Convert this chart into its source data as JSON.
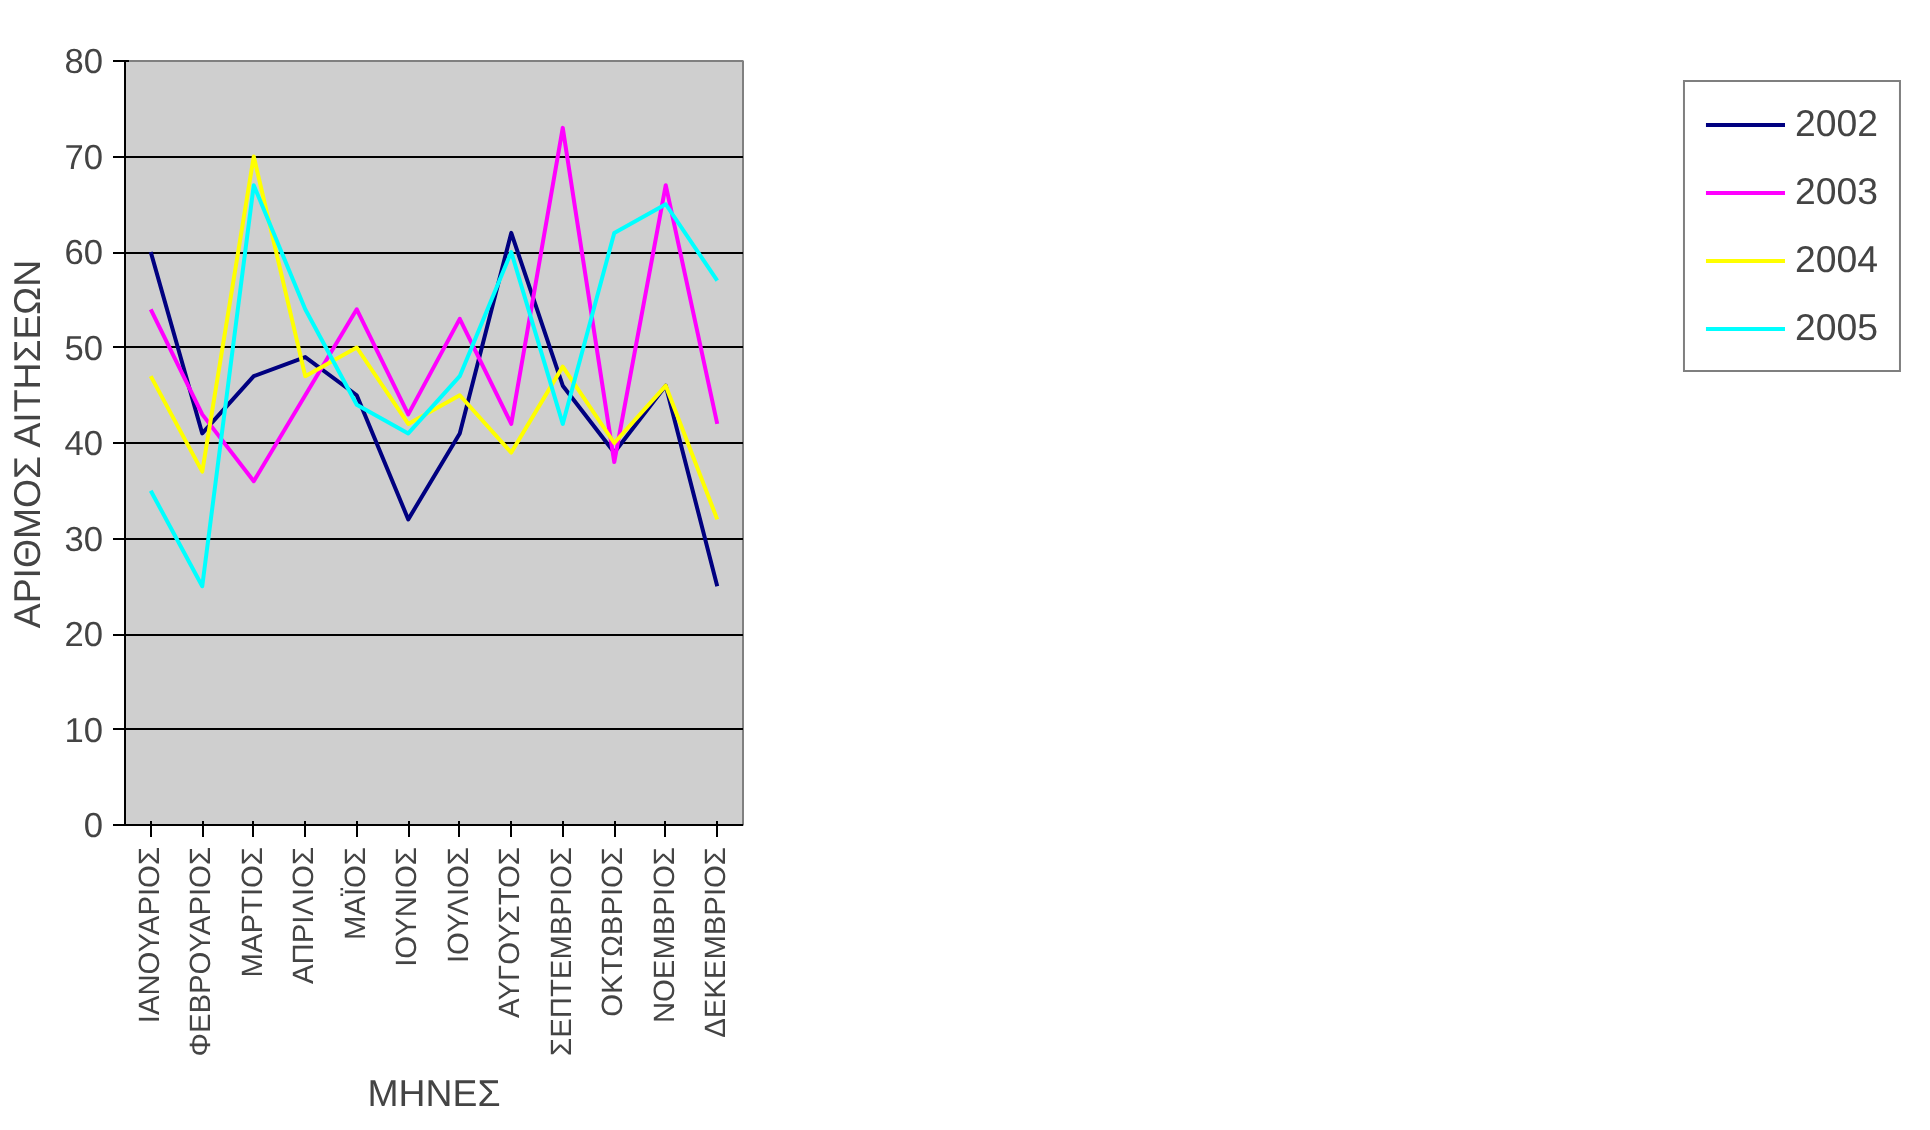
{
  "chart_data": {
    "type": "line",
    "xlabel": "ΜΗΝΕΣ",
    "ylabel": "ΑΡΙΘΜΟΣ ΑΙΤΗΣΕΩΝ",
    "categories": [
      "ΙΑΝΟΥΑΡΙΟΣ",
      "ΦΕΒΡΟΥΑΡΙΟΣ",
      "ΜΑΡΤΙΟΣ",
      "ΑΠΡΙΛΙΟΣ",
      "ΜΑΪΟΣ",
      "ΙΟΥΝΙΟΣ",
      "ΙΟΥΛΙΟΣ",
      "ΑΥΓΟΥΣΤΟΣ",
      "ΣΕΠΤΕΜΒΡΙΟΣ",
      "ΟΚΤΩΒΡΙΟΣ",
      "ΝΟΕΜΒΡΙΟΣ",
      "ΔΕΚΕΜΒΡΙΟΣ"
    ],
    "series": [
      {
        "name": "2002",
        "color": "#000080",
        "values": [
          60,
          41,
          47,
          49,
          45,
          32,
          41,
          62,
          46,
          39,
          46,
          25
        ]
      },
      {
        "name": "2003",
        "color": "#ff00ff",
        "values": [
          54,
          43,
          36,
          45,
          54,
          43,
          53,
          42,
          73,
          38,
          67,
          42
        ]
      },
      {
        "name": "2004",
        "color": "#ffff00",
        "values": [
          47,
          37,
          70,
          47,
          50,
          42,
          45,
          39,
          48,
          40,
          46,
          32
        ]
      },
      {
        "name": "2005",
        "color": "#00ffff",
        "values": [
          35,
          25,
          67,
          54,
          44,
          41,
          47,
          60,
          42,
          62,
          65,
          57
        ]
      }
    ],
    "ylim": [
      0,
      80
    ],
    "yticks": [
      0,
      10,
      20,
      30,
      40,
      50,
      60,
      70,
      80
    ],
    "grid": "y",
    "legend": "right"
  }
}
